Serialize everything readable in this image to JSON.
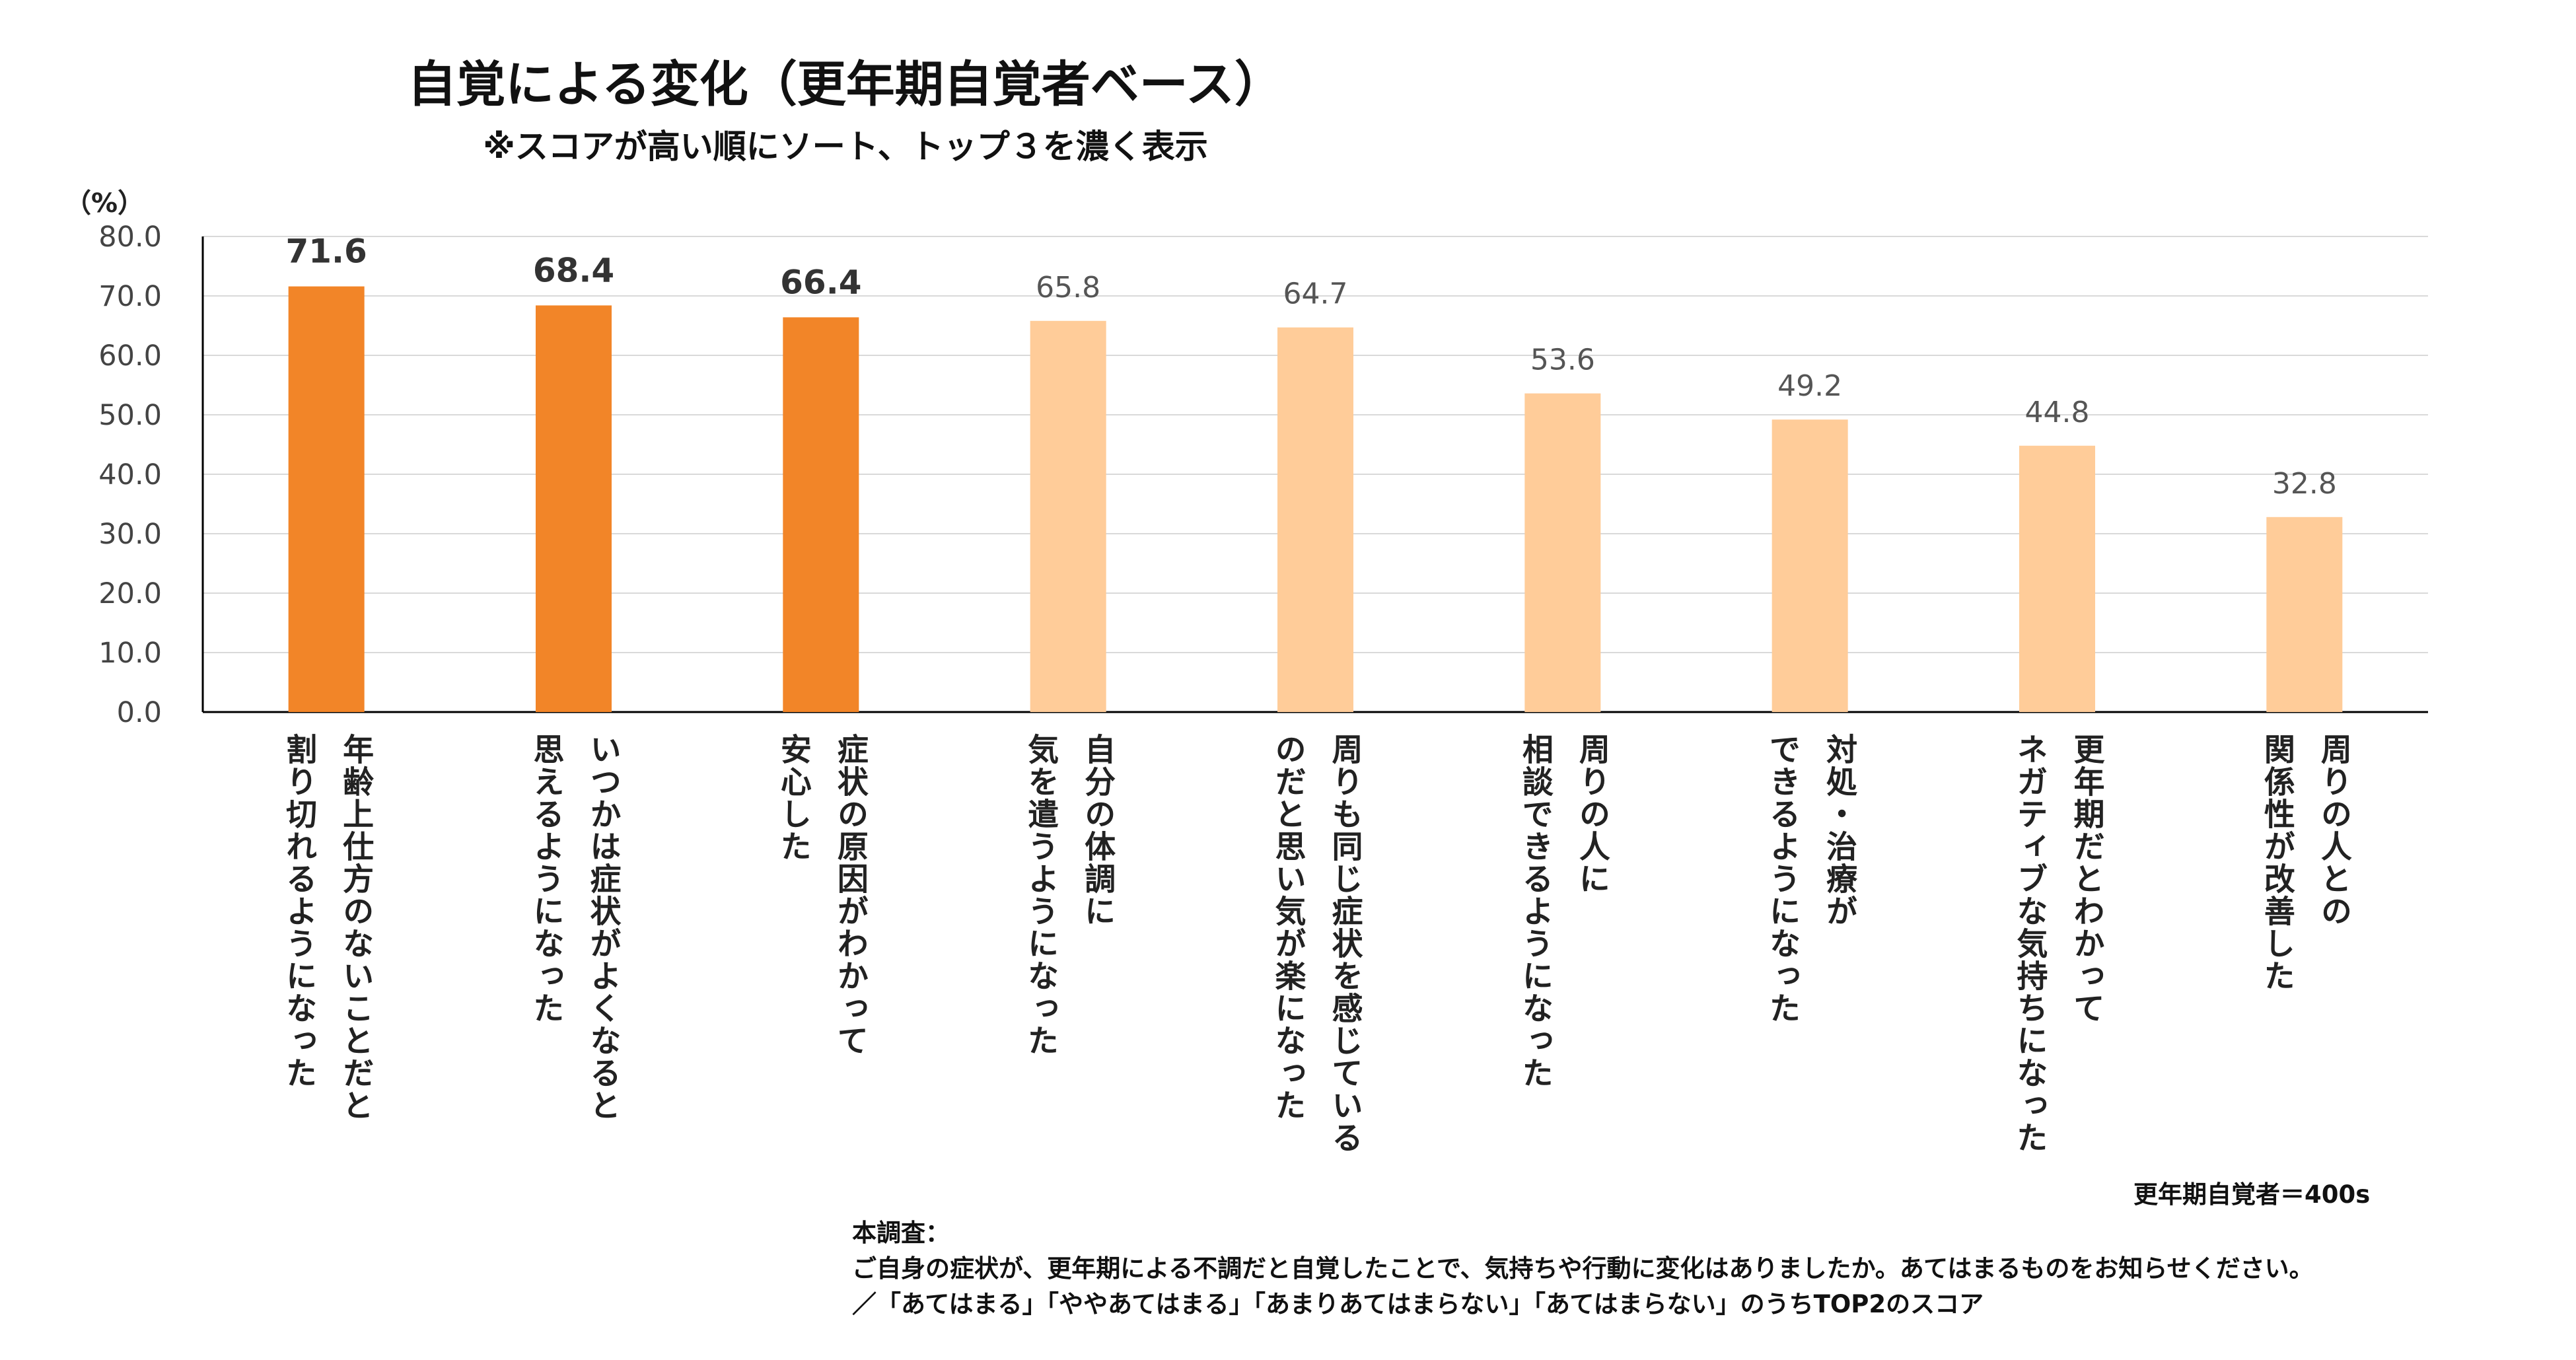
{
  "title": "自覚による変化（更年期自覚者ベース）",
  "subtitle": "※スコアが高い順にソート、トップ３を濃く表示",
  "colors": {
    "top3": "#F28528",
    "others": "#FFCC99",
    "grid": "#D9D9D9",
    "axis": "#000000"
  },
  "chart_data": {
    "type": "bar",
    "ylabel": "（%）",
    "ylim": [
      0,
      80
    ],
    "yticks": [
      "0.0",
      "10.0",
      "20.0",
      "30.0",
      "40.0",
      "50.0",
      "60.0",
      "70.0",
      "80.0"
    ],
    "categories": [
      [
        "年齢上仕方のないことだと",
        "割り切れるようになった"
      ],
      [
        "いつかは症状がよくなると",
        "思えるようになった"
      ],
      [
        "症状の原因がわかって",
        "安心した"
      ],
      [
        "自分の体調に",
        "気を遣うようになった"
      ],
      [
        "周りも同じ症状を感じている",
        "のだと思い気が楽になった"
      ],
      [
        "周りの人に",
        "相談できるようになった"
      ],
      [
        "対処・治療が",
        "できるようになった"
      ],
      [
        "更年期だとわかって",
        "ネガティブな気持ちになった"
      ],
      [
        "周りの人との",
        "関係性が改善した"
      ]
    ],
    "values": [
      71.6,
      68.4,
      66.4,
      65.8,
      64.7,
      53.6,
      49.2,
      44.8,
      32.8
    ],
    "value_labels": [
      "71.6",
      "68.4",
      "66.4",
      "65.8",
      "64.7",
      "53.6",
      "49.2",
      "44.8",
      "32.8"
    ],
    "highlight_top": 3
  },
  "notes": {
    "base": "更年期自覚者＝400s",
    "survey_label": "本調査：",
    "question": "ご自身の症状が、更年期による不調だと自覚したことで、気持ちや行動に変化はありましたか。あてはまるものをお知らせください。",
    "scale": "／「あてはまる」「ややあてはまる」「あまりあてはまらない」「あてはまらない」のうちTOP2のスコア"
  }
}
